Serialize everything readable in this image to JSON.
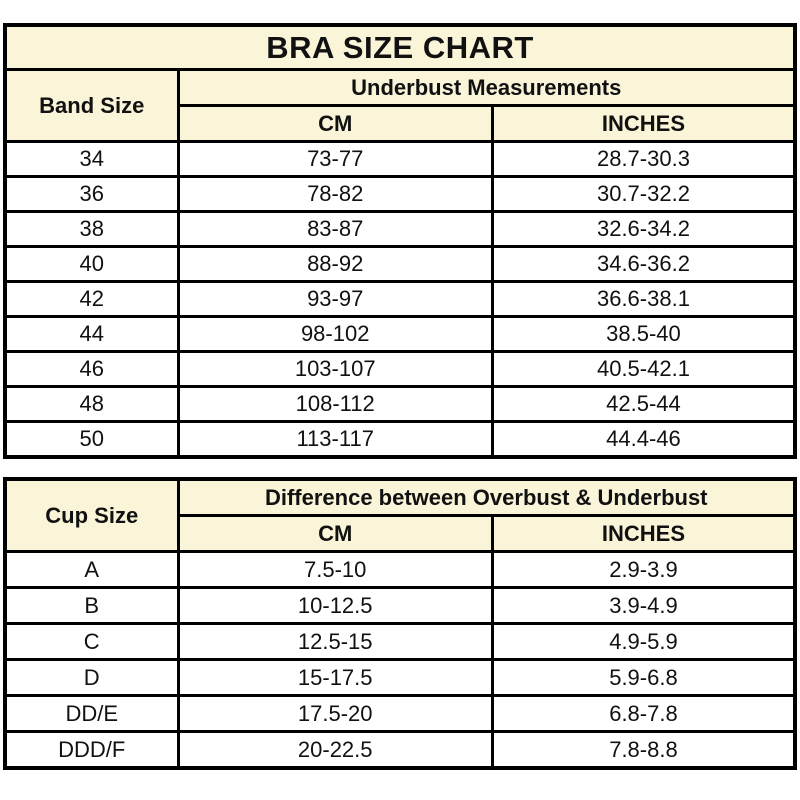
{
  "colors": {
    "header_background": "#FAF5D8",
    "border": "#000000",
    "text": "#111111",
    "row_background": "#FFFFFF"
  },
  "chart_data": [
    {
      "type": "table",
      "title": "BRA SIZE CHART",
      "row_header": "Band Size",
      "group_header": "Underbust Measurements",
      "unit_columns": [
        "CM",
        "INCHES"
      ],
      "rows": [
        [
          "34",
          "73-77",
          "28.7-30.3"
        ],
        [
          "36",
          "78-82",
          "30.7-32.2"
        ],
        [
          "38",
          "83-87",
          "32.6-34.2"
        ],
        [
          "40",
          "88-92",
          "34.6-36.2"
        ],
        [
          "42",
          "93-97",
          "36.6-38.1"
        ],
        [
          "44",
          "98-102",
          "38.5-40"
        ],
        [
          "46",
          "103-107",
          "40.5-42.1"
        ],
        [
          "48",
          "108-112",
          "42.5-44"
        ],
        [
          "50",
          "113-117",
          "44.4-46"
        ]
      ]
    },
    {
      "type": "table",
      "title": "",
      "row_header": "Cup Size",
      "group_header": "Difference between Overbust & Underbust",
      "unit_columns": [
        "CM",
        "INCHES"
      ],
      "rows": [
        [
          "A",
          "7.5-10",
          "2.9-3.9"
        ],
        [
          "B",
          "10-12.5",
          "3.9-4.9"
        ],
        [
          "C",
          "12.5-15",
          "4.9-5.9"
        ],
        [
          "D",
          "15-17.5",
          "5.9-6.8"
        ],
        [
          "DD/E",
          "17.5-20",
          "6.8-7.8"
        ],
        [
          "DDD/F",
          "20-22.5",
          "7.8-8.8"
        ]
      ]
    }
  ]
}
